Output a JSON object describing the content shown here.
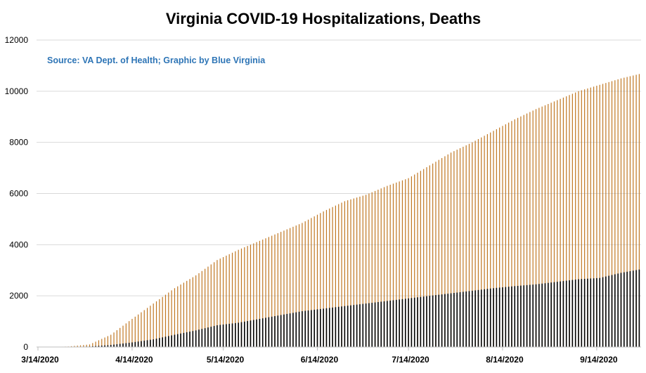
{
  "chart_data": {
    "type": "bar",
    "title_parts": [
      {
        "text": "Virginia COVID-19 ",
        "color": "#7f7f7f"
      },
      {
        "text": "Hospitalizations, ",
        "color": "#ed7d31"
      },
      {
        "text": "Deaths",
        "color": "#595959"
      }
    ],
    "source": "Source: VA Dept. of Health; Graphic by Blue Virginia",
    "ylim": [
      0,
      12000
    ],
    "yticks": [
      "0",
      "2000",
      "4000",
      "6000",
      "8000",
      "10000",
      "12000"
    ],
    "xticks": [
      "3/14/2020",
      "4/14/2020",
      "5/14/2020",
      "6/14/2020",
      "7/14/2020",
      "8/14/2020",
      "9/14/2020"
    ],
    "grid": true,
    "series_hospitalizations": {
      "color": "#c07722",
      "x": [
        "3/14/2020",
        "3/21/2020",
        "3/28/2020",
        "4/4/2020",
        "4/11/2020",
        "4/18/2020",
        "4/25/2020",
        "5/2/2020",
        "5/9/2020",
        "5/16/2020",
        "5/23/2020",
        "5/30/2020",
        "6/6/2020",
        "6/13/2020",
        "6/20/2020",
        "6/27/2020",
        "7/4/2020",
        "7/11/2020",
        "7/18/2020",
        "7/25/2020",
        "8/1/2020",
        "8/8/2020",
        "8/15/2020",
        "8/22/2020",
        "8/29/2020",
        "9/5/2020",
        "9/12/2020",
        "9/19/2020",
        "9/26/2020",
        "10/1/2020"
      ],
      "values": [
        0,
        20,
        100,
        480,
        1100,
        1700,
        2300,
        2800,
        3400,
        3800,
        4150,
        4500,
        4850,
        5300,
        5700,
        5950,
        6300,
        6600,
        7100,
        7600,
        8000,
        8450,
        8900,
        9300,
        9650,
        10000,
        10250,
        10500,
        10700,
        10850
      ]
    },
    "series_deaths": {
      "color": "#000000",
      "x": [
        "3/14/2020",
        "3/21/2020",
        "3/28/2020",
        "4/4/2020",
        "4/11/2020",
        "4/18/2020",
        "4/25/2020",
        "5/2/2020",
        "5/9/2020",
        "5/16/2020",
        "5/23/2020",
        "5/30/2020",
        "6/6/2020",
        "6/13/2020",
        "6/20/2020",
        "6/27/2020",
        "7/4/2020",
        "7/11/2020",
        "7/18/2020",
        "7/25/2020",
        "8/1/2020",
        "8/8/2020",
        "8/15/2020",
        "8/22/2020",
        "8/29/2020",
        "9/5/2020",
        "9/12/2020",
        "9/19/2020",
        "9/26/2020",
        "10/1/2020"
      ],
      "values": [
        0,
        5,
        20,
        80,
        180,
        300,
        480,
        650,
        850,
        950,
        1100,
        1250,
        1400,
        1500,
        1600,
        1700,
        1800,
        1900,
        2000,
        2100,
        2200,
        2300,
        2380,
        2450,
        2550,
        2650,
        2700,
        2900,
        3050,
        3150
      ]
    }
  }
}
